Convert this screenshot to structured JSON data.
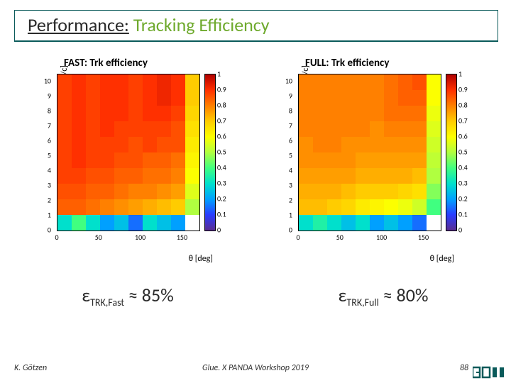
{
  "title": {
    "black": "Performance:",
    "green": "Tracking Efficiency"
  },
  "axis": {
    "ylabel": "p [Ge.V/c]",
    "xlabel": "θ [deg]",
    "yticks": [
      0,
      1,
      2,
      3,
      4,
      5,
      6,
      7,
      8,
      9,
      10
    ],
    "xticks": [
      0,
      50,
      100,
      150
    ],
    "xlim": [
      0,
      170
    ],
    "ylim": [
      0,
      10.5
    ]
  },
  "colorbar": {
    "ticks": [
      0,
      0.1,
      0.2,
      0.3,
      0.4,
      0.5,
      0.6,
      0.7,
      0.8,
      0.9,
      1
    ],
    "gradient": [
      "#5b2d90",
      "#2a3cff",
      "#00a0ff",
      "#00e0cc",
      "#40ff80",
      "#b0ff40",
      "#fcff00",
      "#ffcc00",
      "#ff8000",
      "#ff3000",
      "#b00000"
    ]
  },
  "charts": {
    "fast": {
      "title": "FAST: Trk efficiency",
      "eff_prefix": "ε",
      "eff_sub": "TRK,Fast",
      "eff_val": "≈ 85%",
      "cells": [
        [
          0.88,
          0.9,
          0.88,
          0.9,
          0.9,
          0.88,
          0.9,
          0.92,
          0.9,
          0.7
        ],
        [
          0.88,
          0.9,
          0.88,
          0.9,
          0.9,
          0.88,
          0.9,
          0.92,
          0.9,
          0.7
        ],
        [
          0.88,
          0.9,
          0.88,
          0.9,
          0.9,
          0.88,
          0.9,
          0.9,
          0.88,
          0.68
        ],
        [
          0.88,
          0.9,
          0.88,
          0.9,
          0.88,
          0.88,
          0.88,
          0.88,
          0.86,
          0.66
        ],
        [
          0.88,
          0.9,
          0.88,
          0.88,
          0.88,
          0.86,
          0.88,
          0.86,
          0.86,
          0.64
        ],
        [
          0.88,
          0.9,
          0.88,
          0.88,
          0.86,
          0.86,
          0.84,
          0.84,
          0.82,
          0.62
        ],
        [
          0.88,
          0.88,
          0.86,
          0.86,
          0.84,
          0.84,
          0.82,
          0.82,
          0.8,
          0.6
        ],
        [
          0.86,
          0.86,
          0.84,
          0.84,
          0.82,
          0.8,
          0.8,
          0.78,
          0.76,
          0.56
        ],
        [
          0.84,
          0.84,
          0.82,
          0.8,
          0.78,
          0.76,
          0.74,
          0.72,
          0.7,
          0.5
        ],
        [
          0.3,
          0.4,
          0.3,
          0.2,
          0.25,
          0.15,
          0.3,
          0.25,
          0.2,
          0.0
        ]
      ]
    },
    "full": {
      "title": "FULL: Trk efficiency",
      "eff_prefix": "ε",
      "eff_sub": "TRK,Full",
      "eff_val": "≈ 80%",
      "cells": [
        [
          0.8,
          0.8,
          0.8,
          0.8,
          0.8,
          0.8,
          0.82,
          0.84,
          0.86,
          0.6
        ],
        [
          0.8,
          0.8,
          0.8,
          0.8,
          0.8,
          0.8,
          0.82,
          0.84,
          0.84,
          0.6
        ],
        [
          0.8,
          0.8,
          0.8,
          0.8,
          0.8,
          0.8,
          0.82,
          0.82,
          0.82,
          0.58
        ],
        [
          0.8,
          0.8,
          0.8,
          0.8,
          0.8,
          0.78,
          0.8,
          0.8,
          0.8,
          0.56
        ],
        [
          0.78,
          0.8,
          0.8,
          0.78,
          0.78,
          0.78,
          0.78,
          0.78,
          0.78,
          0.54
        ],
        [
          0.78,
          0.78,
          0.78,
          0.78,
          0.76,
          0.76,
          0.76,
          0.76,
          0.76,
          0.52
        ],
        [
          0.76,
          0.76,
          0.76,
          0.76,
          0.74,
          0.74,
          0.74,
          0.74,
          0.72,
          0.5
        ],
        [
          0.74,
          0.74,
          0.74,
          0.72,
          0.7,
          0.7,
          0.7,
          0.68,
          0.66,
          0.46
        ],
        [
          0.72,
          0.72,
          0.7,
          0.68,
          0.64,
          0.62,
          0.6,
          0.58,
          0.54,
          0.4
        ],
        [
          0.3,
          0.35,
          0.3,
          0.25,
          0.3,
          0.2,
          0.25,
          0.2,
          0.15,
          0.0
        ]
      ]
    }
  },
  "footer": {
    "author": "K. Götzen",
    "venue": "Glue. X PANDA Workshop 2019",
    "page": "88"
  },
  "logo": {
    "color": "#0a5a5a"
  }
}
